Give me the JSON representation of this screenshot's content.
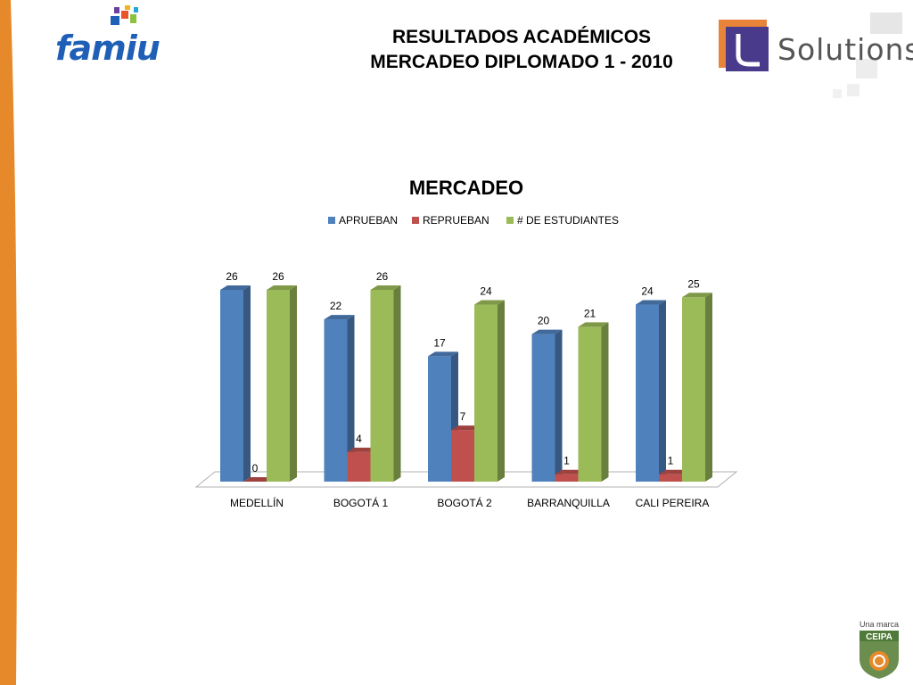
{
  "header": {
    "title_line1": "RESULTADOS ACADÉMICOS",
    "title_line2": "MERCADEO DIPLOMADO 1 - 2010"
  },
  "logos": {
    "famiu": "famiu",
    "solutions": "Solutions",
    "ceipa_tagline": "Una marca",
    "ceipa": "CEIPA"
  },
  "colors": {
    "orange": "#e6892a",
    "apruebaN": "#4f81bd",
    "reprueban": "#c0504d",
    "estudiantes": "#9bbb59"
  },
  "chart_data": {
    "type": "bar",
    "title": "MERCADEO",
    "categories": [
      "MEDELLÍN",
      "BOGOTÁ 1",
      "BOGOTÁ 2",
      "BARRANQUILLA",
      "CALI PEREIRA"
    ],
    "series": [
      {
        "name": "APRUEBAN",
        "values": [
          26,
          22,
          17,
          20,
          24
        ],
        "color": "#4f81bd"
      },
      {
        "name": "REPRUEBAN",
        "values": [
          0,
          4,
          7,
          1,
          1
        ],
        "color": "#c0504d"
      },
      {
        "name": "# DE ESTUDIANTES",
        "values": [
          26,
          26,
          24,
          21,
          25
        ],
        "color": "#9bbb59"
      }
    ],
    "ylim": [
      0,
      26
    ],
    "legend": "top",
    "grid": false,
    "style": "3d-clustered-column"
  }
}
